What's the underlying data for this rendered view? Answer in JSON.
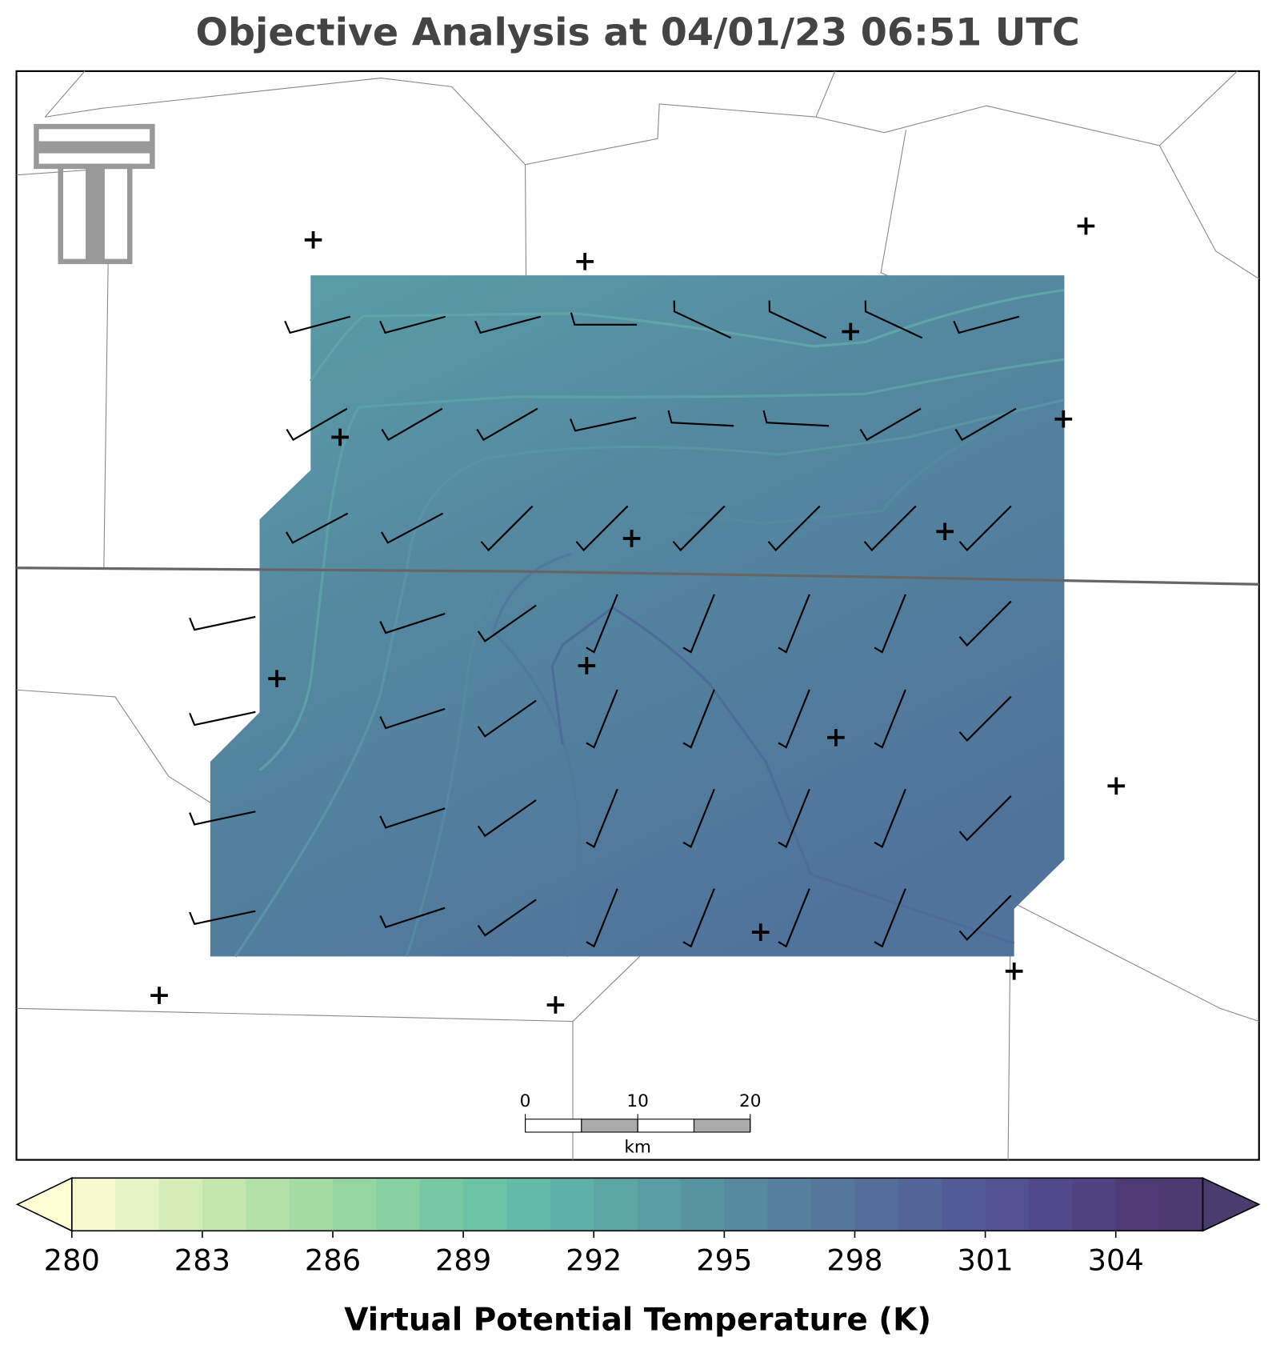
{
  "title": "Objective Analysis at 04/01/23 06:51 UTC",
  "colorbar": {
    "label": "Virtual Potential Temperature (K)",
    "lim": [
      280,
      306
    ],
    "ticks": [
      280,
      283,
      286,
      289,
      292,
      295,
      298,
      301,
      304
    ],
    "under": "#fffed4",
    "over": "#4a3d6e",
    "colors": [
      "#f8f9cf",
      "#e6f3c4",
      "#d5edb9",
      "#c4e7af",
      "#b4e1a7",
      "#a4dba3",
      "#95d5a1",
      "#86cfa1",
      "#77c8a2",
      "#6bc2a5",
      "#63baa8",
      "#5fb0a8",
      "#5ca6a6",
      "#5a9ca4",
      "#5893a2",
      "#5789a0",
      "#56809e",
      "#55779c",
      "#546d9a",
      "#536498",
      "#525b96",
      "#525293",
      "#51498b",
      "#504180",
      "#4f3a76",
      "#4c3a70"
    ]
  },
  "scale_bar": {
    "ticks": [
      0,
      10,
      20
    ],
    "unit": "km"
  }
}
